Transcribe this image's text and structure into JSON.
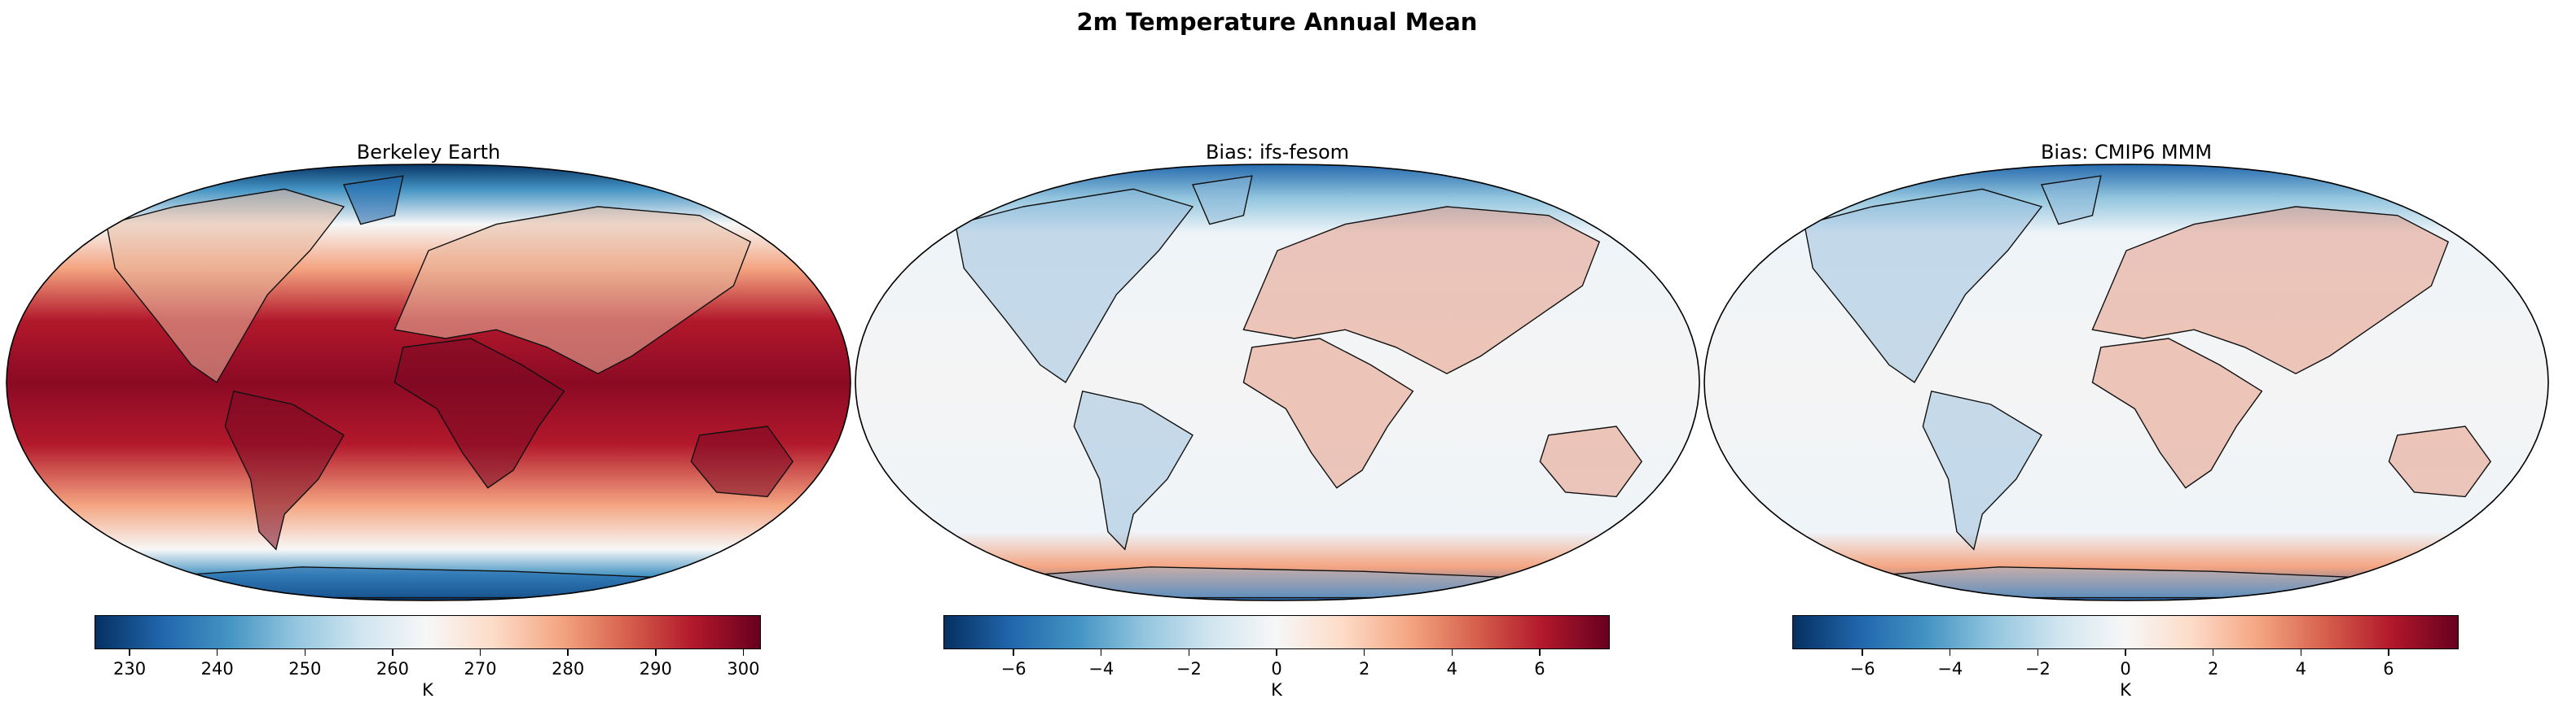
{
  "figure": {
    "suptitle": "2m Temperature Annual Mean"
  },
  "panels": [
    {
      "title": "Berkeley Earth",
      "colormap": "RdBu_r",
      "cbar": {
        "label": "K",
        "vmin": 226,
        "vmax": 302,
        "ticks": [
          230,
          240,
          250,
          260,
          270,
          280,
          290,
          300
        ]
      },
      "field": "absolute"
    },
    {
      "title": "Bias: ifs-fesom",
      "colormap": "RdBu_r",
      "cbar": {
        "label": "K",
        "vmin": -7.6,
        "vmax": 7.6,
        "ticks": [
          -6,
          -4,
          -2,
          0,
          2,
          4,
          6
        ],
        "tick_labels": [
          "−6",
          "−4",
          "−2",
          "0",
          "2",
          "4",
          "6"
        ]
      },
      "field": "bias"
    },
    {
      "title": "Bias: CMIP6 MMM",
      "colormap": "RdBu_r",
      "cbar": {
        "label": "K",
        "vmin": -7.6,
        "vmax": 7.6,
        "ticks": [
          -6,
          -4,
          -2,
          0,
          2,
          4,
          6
        ],
        "tick_labels": [
          "−6",
          "−4",
          "−2",
          "0",
          "2",
          "4",
          "6"
        ]
      },
      "field": "bias"
    }
  ],
  "colors": {
    "cold": "#053061",
    "neutral": "#f7f7f7",
    "warm": "#67001f"
  }
}
